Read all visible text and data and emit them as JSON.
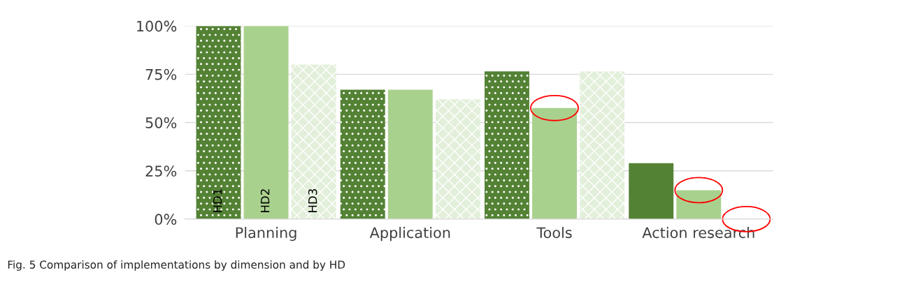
{
  "chart_data": {
    "type": "bar",
    "categories": [
      "Planning",
      "Application",
      "Tools",
      "Action research"
    ],
    "series": [
      {
        "name": "HD1",
        "color": "#548235",
        "values": [
          100,
          67,
          76.5,
          29
        ]
      },
      {
        "name": "HD2",
        "color": "#a9d18e",
        "values": [
          100,
          67,
          57.5,
          15
        ]
      },
      {
        "name": "HD3",
        "color": "#e2efda",
        "values": [
          80,
          62,
          76.5,
          0
        ]
      }
    ],
    "ylim": [
      0,
      100
    ],
    "yticks": [
      {
        "value": 0,
        "label": "0%"
      },
      {
        "value": 25,
        "label": "25%"
      },
      {
        "value": 50,
        "label": "50%"
      },
      {
        "value": 75,
        "label": "75%"
      },
      {
        "value": 100,
        "label": "100%"
      }
    ],
    "grid": "y",
    "legend": false,
    "annotations": [
      "Fig. 5 Comparison of implementations by dimension and by HD"
    ]
  }
}
